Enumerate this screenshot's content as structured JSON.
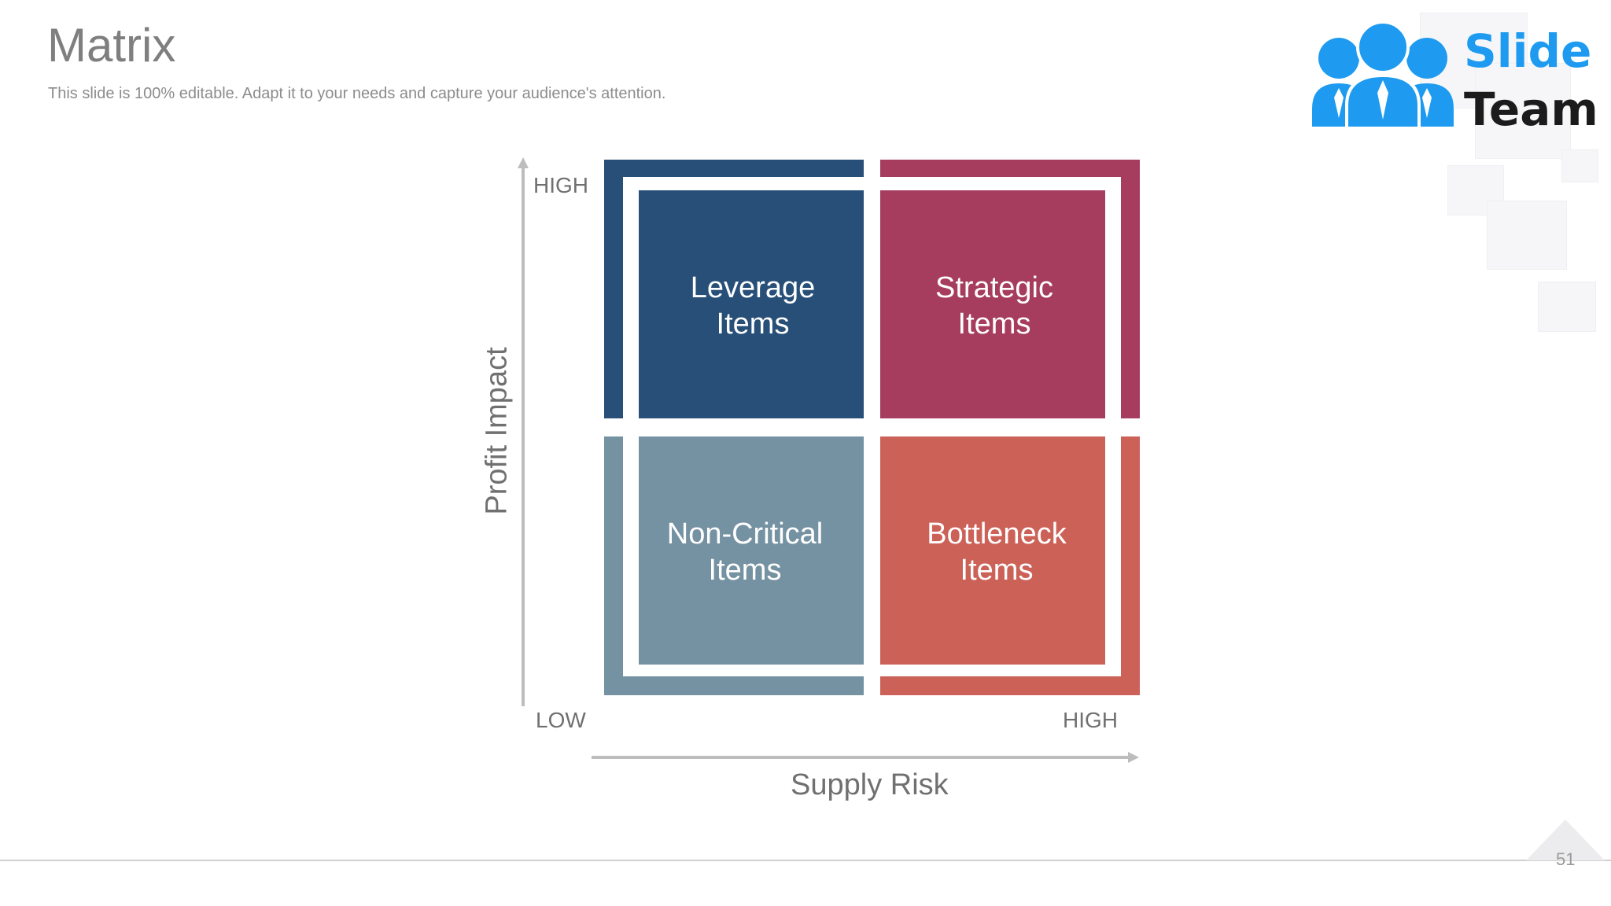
{
  "slide": {
    "title": "Matrix",
    "subtitle": "This slide is 100% editable. Adapt it to your needs and capture your audience's attention.",
    "page_number": "51"
  },
  "logo": {
    "word1": "Slide",
    "word2": "Team",
    "icon": "people-group-icon",
    "colors": {
      "primary": "#1e9bf0",
      "text": "#1b1b1b"
    }
  },
  "matrix": {
    "y_axis_title": "Profit Impact",
    "x_axis_title": "Supply Risk",
    "y_high": "HIGH",
    "x_low": "LOW",
    "x_high": "HIGH",
    "quadrants": [
      {
        "line1": "Leverage",
        "line2": "Items",
        "color": "#274f78"
      },
      {
        "line1": "Strategic",
        "line2": "Items",
        "color": "#a63c5e"
      },
      {
        "line1": "Non-Critical",
        "line2": "Items",
        "color": "#7592a2"
      },
      {
        "line1": "Bottleneck",
        "line2": "Items",
        "color": "#cc6158"
      }
    ],
    "axis_color": "#bdbdbd"
  }
}
